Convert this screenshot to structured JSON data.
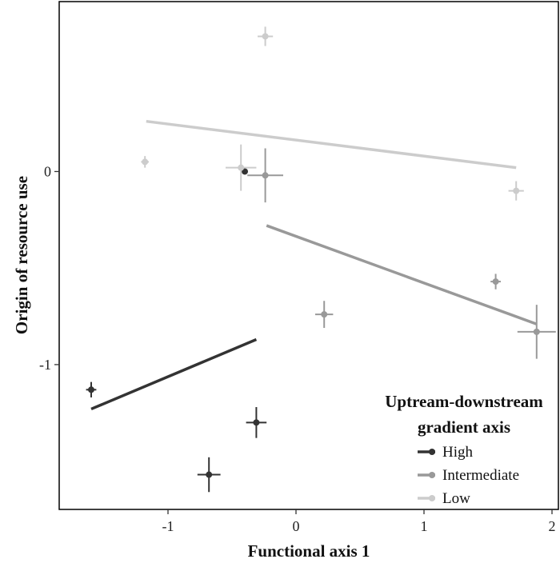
{
  "chart_data": {
    "type": "scatter",
    "title": "",
    "xlabel": "Functional axis 1",
    "ylabel": "Origin of resource use",
    "xlim": [
      -1.85,
      2.05
    ],
    "ylim": [
      -1.75,
      0.88
    ],
    "x_ticks": [
      -1,
      0,
      1,
      2
    ],
    "x_tick_labels": [
      "-1",
      "0",
      "1",
      "2"
    ],
    "y_ticks": [
      0,
      -1
    ],
    "y_tick_labels": [
      "0",
      "-1"
    ],
    "grid": false,
    "legend": {
      "title_lines": [
        "Uptream-downstream",
        "gradient axis"
      ],
      "placement": "bottom-right"
    },
    "series": [
      {
        "name": "High",
        "color": "#333333",
        "points": [
          {
            "x": -1.6,
            "y": -1.13,
            "xerr": 0.04,
            "yerr": 0.04
          },
          {
            "x": -0.68,
            "y": -1.57,
            "xerr": 0.09,
            "yerr": 0.09
          },
          {
            "x": -0.31,
            "y": -1.3,
            "xerr": 0.08,
            "yerr": 0.08
          },
          {
            "x": -0.4,
            "y": 0.0,
            "xerr": 0.0,
            "yerr": 0.0
          }
        ],
        "fit_line": {
          "x": [
            -1.6,
            -0.31
          ],
          "y": [
            -1.23,
            -0.87
          ]
        }
      },
      {
        "name": "Intermediate",
        "color": "#999999",
        "points": [
          {
            "x": -0.24,
            "y": -0.02,
            "xerr": 0.14,
            "yerr": 0.14
          },
          {
            "x": 0.22,
            "y": -0.74,
            "xerr": 0.07,
            "yerr": 0.07
          },
          {
            "x": 1.56,
            "y": -0.57,
            "xerr": 0.04,
            "yerr": 0.04
          },
          {
            "x": 1.88,
            "y": -0.83,
            "xerr": 0.15,
            "yerr": 0.14
          }
        ],
        "fit_line": {
          "x": [
            -0.23,
            1.88
          ],
          "y": [
            -0.28,
            -0.79
          ]
        }
      },
      {
        "name": "Low",
        "color": "#cccccc",
        "points": [
          {
            "x": -0.24,
            "y": 0.7,
            "xerr": 0.06,
            "yerr": 0.05
          },
          {
            "x": -1.18,
            "y": 0.05,
            "xerr": 0.03,
            "yerr": 0.03
          },
          {
            "x": -0.43,
            "y": 0.02,
            "xerr": 0.12,
            "yerr": 0.12
          },
          {
            "x": 1.72,
            "y": -0.1,
            "xerr": 0.06,
            "yerr": 0.05
          }
        ],
        "fit_line": {
          "x": [
            -1.17,
            1.72
          ],
          "y": [
            0.26,
            0.02
          ]
        }
      }
    ]
  }
}
